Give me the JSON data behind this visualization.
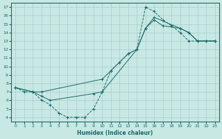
{
  "xlabel": "Humidex (Indice chaleur)",
  "bg_color": "#c8e8e4",
  "grid_color": "#a8cccc",
  "line_color": "#1a6868",
  "xlim": [
    -0.5,
    23.5
  ],
  "ylim": [
    3.5,
    17.5
  ],
  "xticks": [
    0,
    1,
    2,
    3,
    4,
    5,
    6,
    7,
    8,
    9,
    10,
    11,
    12,
    13,
    14,
    15,
    16,
    17,
    18,
    19,
    20,
    21,
    22,
    23
  ],
  "yticks": [
    4,
    5,
    6,
    7,
    8,
    9,
    10,
    11,
    12,
    13,
    14,
    15,
    16,
    17
  ],
  "line1_x": [
    0,
    1,
    2,
    3,
    4,
    5,
    6,
    7,
    8,
    9,
    10,
    11,
    12,
    13,
    14,
    15,
    16,
    17,
    18,
    19,
    20,
    21,
    22,
    23
  ],
  "line1_y": [
    7.5,
    7.0,
    7.0,
    6.0,
    5.5,
    4.5,
    4.0,
    4.0,
    4.0,
    5.0,
    7.0,
    9.5,
    10.5,
    11.5,
    12.0,
    17.0,
    16.5,
    15.5,
    14.8,
    14.0,
    13.0,
    13.0,
    13.0,
    13.0
  ],
  "line2_x": [
    0,
    2,
    3,
    10,
    11,
    12,
    13,
    14,
    15,
    16,
    17,
    19,
    20,
    21,
    23
  ],
  "line2_y": [
    7.5,
    7.0,
    7.0,
    8.5,
    9.5,
    10.5,
    11.5,
    12.0,
    14.5,
    15.5,
    14.8,
    14.5,
    14.0,
    13.0,
    13.0
  ],
  "line3_x": [
    0,
    2,
    3,
    4,
    9,
    10,
    14,
    15,
    16,
    19,
    20,
    21,
    22,
    23
  ],
  "line3_y": [
    7.5,
    7.0,
    6.5,
    6.0,
    6.8,
    7.0,
    12.0,
    14.5,
    15.8,
    14.5,
    14.0,
    13.0,
    13.0,
    13.0
  ]
}
